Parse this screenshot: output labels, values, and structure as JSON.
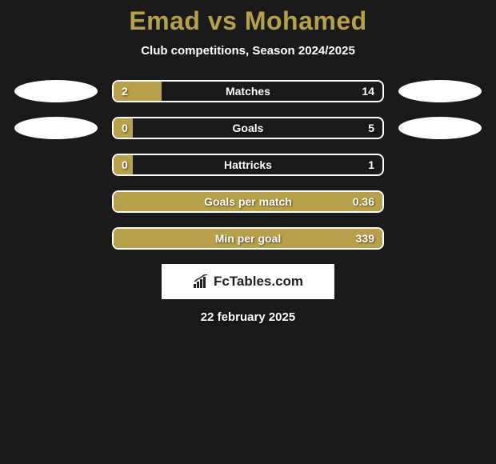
{
  "background_color": "#1a1a1a",
  "title": {
    "text": "Emad vs Mohamed",
    "color": "#b8a04a",
    "fontsize": 32,
    "fontweight": 900
  },
  "subtitle": {
    "text": "Club competitions, Season 2024/2025",
    "color": "#ffffff",
    "fontsize": 15
  },
  "bar_style": {
    "track_width": 340,
    "track_height": 28,
    "border_color": "#ffffff",
    "border_width": 2,
    "border_radius": 8,
    "fill_color": "#b8a04a",
    "text_color": "#ffffff",
    "value_fontsize": 14
  },
  "ellipse_style": {
    "width": 104,
    "height": 28,
    "color": "#ffffff"
  },
  "rows": [
    {
      "label": "Matches",
      "left": "2",
      "right": "14",
      "fill_pct": 18,
      "show_ellipses": true
    },
    {
      "label": "Goals",
      "left": "0",
      "right": "5",
      "fill_pct": 7,
      "show_ellipses": true
    },
    {
      "label": "Hattricks",
      "left": "0",
      "right": "1",
      "fill_pct": 7,
      "show_ellipses": false
    },
    {
      "label": "Goals per match",
      "left": "",
      "right": "0.36",
      "fill_pct": 100,
      "show_ellipses": false
    },
    {
      "label": "Min per goal",
      "left": "",
      "right": "339",
      "fill_pct": 100,
      "show_ellipses": false
    }
  ],
  "logo": {
    "text": "FcTables.com",
    "text_color": "#222222",
    "background": "#ffffff"
  },
  "date": {
    "text": "22 february 2025",
    "color": "#ffffff",
    "fontsize": 15
  }
}
